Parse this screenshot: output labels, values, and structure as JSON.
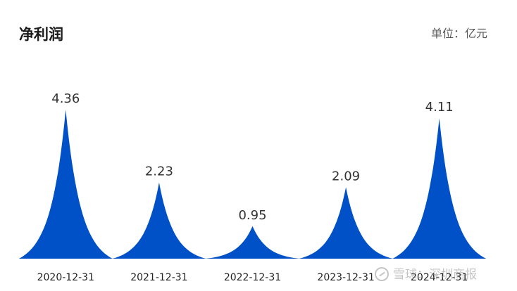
{
  "header": {
    "title": "净利润",
    "unit": "单位：亿元"
  },
  "watermark": {
    "text": "雪球：深圳商报"
  },
  "colors": {
    "peak_fill": "#0050c8"
  },
  "chart_data": {
    "type": "area",
    "categories": [
      "2020-12-31",
      "2021-12-31",
      "2022-12-31",
      "2023-12-31",
      "2024-12-31"
    ],
    "values": [
      4.36,
      2.23,
      0.95,
      2.09,
      4.11
    ],
    "data_labels": [
      "4.36",
      "2.23",
      "0.95",
      "2.09",
      "4.11"
    ],
    "ylim": [
      0,
      4.36
    ],
    "grid": false,
    "legend": "none"
  }
}
